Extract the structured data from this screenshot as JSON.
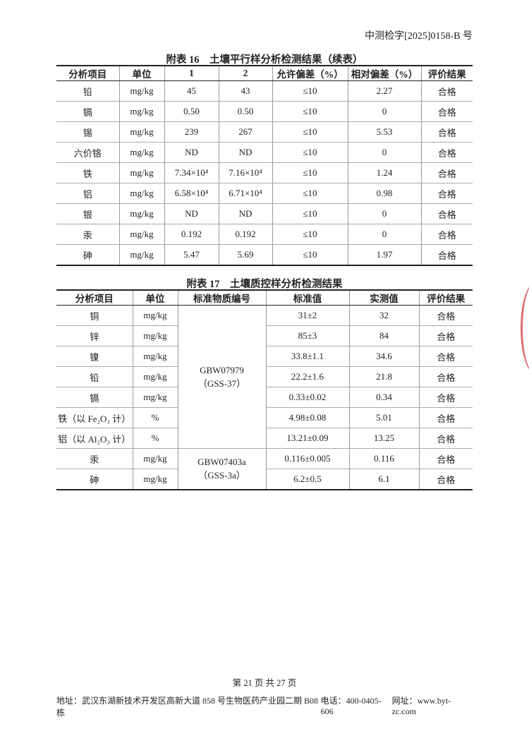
{
  "doc_ref": "中测检字[2025]0158-B 号",
  "table16": {
    "title": "附表 16　土壤平行样分析检测结果（续表）",
    "headers": [
      "分析项目",
      "单位",
      "1",
      "2",
      "允许偏差（%）",
      "相对偏差（%）",
      "评价结果"
    ],
    "rows": [
      [
        "铅",
        "mg/kg",
        "45",
        "43",
        "≤10",
        "2.27",
        "合格"
      ],
      [
        "镉",
        "mg/kg",
        "0.50",
        "0.50",
        "≤10",
        "0",
        "合格"
      ],
      [
        "锡",
        "mg/kg",
        "239",
        "267",
        "≤10",
        "5.53",
        "合格"
      ],
      [
        "六价铬",
        "mg/kg",
        "ND",
        "ND",
        "≤10",
        "0",
        "合格"
      ],
      [
        "铁",
        "mg/kg",
        "7.34×10⁴",
        "7.16×10⁴",
        "≤10",
        "1.24",
        "合格"
      ],
      [
        "铝",
        "mg/kg",
        "6.58×10⁴",
        "6.71×10⁴",
        "≤10",
        "0.98",
        "合格"
      ],
      [
        "银",
        "mg/kg",
        "ND",
        "ND",
        "≤10",
        "0",
        "合格"
      ],
      [
        "汞",
        "mg/kg",
        "0.192",
        "0.192",
        "≤10",
        "0",
        "合格"
      ],
      [
        "砷",
        "mg/kg",
        "5.47",
        "5.69",
        "≤10",
        "1.97",
        "合格"
      ]
    ]
  },
  "table17": {
    "title": "附表 17　土壤质控样分析检测结果",
    "headers": [
      "分析项目",
      "单位",
      "标准物质编号",
      "标准值",
      "实测值",
      "评价结果"
    ],
    "standards": [
      {
        "code": "GBW07979",
        "sub": "（GSS-37）"
      },
      {
        "code": "GBW07403a",
        "sub": "（GSS-3a）"
      }
    ],
    "rows": [
      [
        "铜",
        "mg/kg",
        "31±2",
        "32",
        "合格"
      ],
      [
        "锌",
        "mg/kg",
        "85±3",
        "84",
        "合格"
      ],
      [
        "镍",
        "mg/kg",
        "33.8±1.1",
        "34.6",
        "合格"
      ],
      [
        "铅",
        "mg/kg",
        "22.2±1.6",
        "21.8",
        "合格"
      ],
      [
        "镉",
        "mg/kg",
        "0.33±0.02",
        "0.34",
        "合格"
      ],
      [
        "铁（以 Fe₂O₃ 计）",
        "%",
        "4.98±0.08",
        "5.01",
        "合格"
      ],
      [
        "铝（以 Al₂O₃ 计）",
        "%",
        "13.21±0.09",
        "13.25",
        "合格"
      ],
      [
        "汞",
        "mg/kg",
        "0.116±0.005",
        "0.116",
        "合格"
      ],
      [
        "砷",
        "mg/kg",
        "6.2±0.5",
        "6.1",
        "合格"
      ]
    ]
  },
  "footer": {
    "page": "第 21 页 共 27 页",
    "address": "地址：武汉东湖新技术开发区高新大道 858 号生物医药产业园二期 B08 栋",
    "phone": "电话：400-0405-606",
    "website": "网址：www.byt-zc.com"
  },
  "stamp_color": "#d23a3a"
}
